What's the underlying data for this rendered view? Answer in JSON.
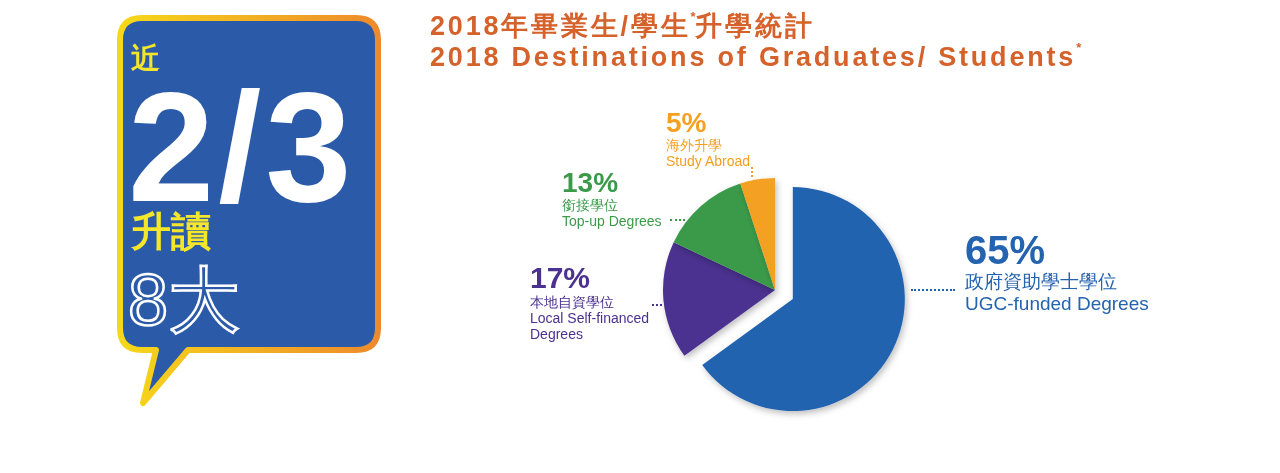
{
  "chart_data": [
    {
      "type": "other",
      "annotations": [
        "近",
        "2/3",
        "升讀",
        "8大"
      ]
    },
    {
      "type": "pie",
      "title": "2018年畢業生/學生$^{*}$升學統計",
      "subtitle": "2018 Destinations of Graduates/ Students$^{*}$",
      "categories": [
        "政府資助學士學位\nUGC-funded Degrees",
        "本地自資學位\nLocal Self-financed Degrees",
        "銜接學位\nTop-up Degrees",
        "海外升學\nStudy Abroad"
      ],
      "values": [
        65,
        17,
        13,
        5
      ],
      "colors": [
        "#2463b0",
        "#4b3190",
        "#3b9a4a",
        "#f4a020"
      ],
      "value_labels": [
        "65%",
        "17%",
        "13%",
        "5%"
      ]
    }
  ]
}
